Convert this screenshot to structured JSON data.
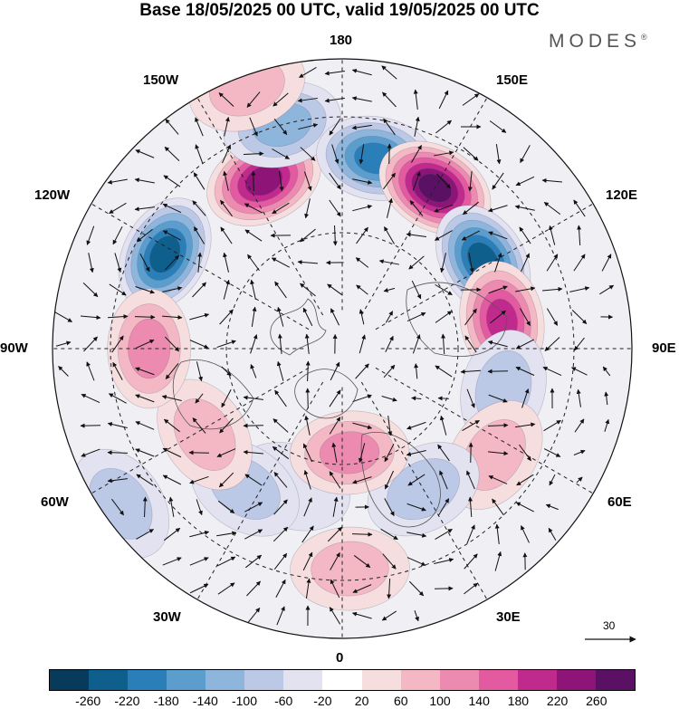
{
  "title": "Base 18/05/2025 00 UTC, valid 19/05/2025 00 UTC",
  "brand": "MODES",
  "brand_mark": "®",
  "longitude_labels": {
    "top": "180",
    "bottom": "0",
    "left": "90W",
    "right": "90E",
    "upper_left_outer": "150W",
    "upper_left_inner": "120W",
    "upper_right_outer": "150E",
    "upper_right_inner": "120E",
    "lower_left_outer": "60W",
    "lower_left_inner": "30W",
    "lower_right_outer": "60E",
    "lower_right_inner": "30E"
  },
  "reference_vector": {
    "value": "30"
  },
  "colorbar": {
    "colors": [
      "#083a5c",
      "#0f5f8d",
      "#2a7fb8",
      "#5b9ecd",
      "#8eb5dc",
      "#bcc9e6",
      "#e2e2f0",
      "#ffffff",
      "#f7dede",
      "#f3b8c4",
      "#ec8ab0",
      "#e35aa0",
      "#c02a8c",
      "#8f1478",
      "#5a1164"
    ],
    "tick_labels": [
      "-260",
      "-220",
      "-180",
      "-140",
      "-100",
      "-60",
      "-20",
      "20",
      "60",
      "100",
      "140",
      "180",
      "220",
      "260"
    ]
  },
  "anomaly_centers": [
    {
      "lon": -155,
      "lat": 42,
      "value": 240,
      "color": "#c02a8c"
    },
    {
      "lon": -118,
      "lat": 38,
      "value": -230,
      "color": "#2a7fb8"
    },
    {
      "lon": -165,
      "lat": 30,
      "value": -140,
      "color": "#5b9ecd"
    },
    {
      "lon": 170,
      "lat": 40,
      "value": -220,
      "color": "#2a7fb8"
    },
    {
      "lon": 150,
      "lat": 42,
      "value": 280,
      "color": "#8f1478"
    },
    {
      "lon": 122,
      "lat": 47,
      "value": -260,
      "color": "#0f5f8d"
    },
    {
      "lon": 100,
      "lat": 48,
      "value": 200,
      "color": "#e35aa0"
    },
    {
      "lon": 76,
      "lat": 47,
      "value": -100,
      "color": "#8eb5dc"
    },
    {
      "lon": 55,
      "lat": 42,
      "value": 80,
      "color": "#f3b8c4"
    },
    {
      "lon": 30,
      "lat": 48,
      "value": -100,
      "color": "#bcc9e6"
    },
    {
      "lon": 2,
      "lat": 33,
      "value": 80,
      "color": "#f3b8c4"
    },
    {
      "lon": -20,
      "lat": 52,
      "value": -60,
      "color": "#bcc9e6"
    },
    {
      "lon": 4,
      "lat": 63,
      "value": 100,
      "color": "#ec8ab0"
    },
    {
      "lon": -35,
      "lat": 46,
      "value": -100,
      "color": "#bcc9e6"
    },
    {
      "lon": -58,
      "lat": 48,
      "value": 60,
      "color": "#f3b8c4"
    },
    {
      "lon": -55,
      "lat": 20,
      "value": -100,
      "color": "#8eb5dc"
    },
    {
      "lon": -90,
      "lat": 40,
      "value": 100,
      "color": "#f3b8c4"
    },
    {
      "lon": -160,
      "lat": 18,
      "value": 80,
      "color": "#f3b8c4"
    }
  ]
}
